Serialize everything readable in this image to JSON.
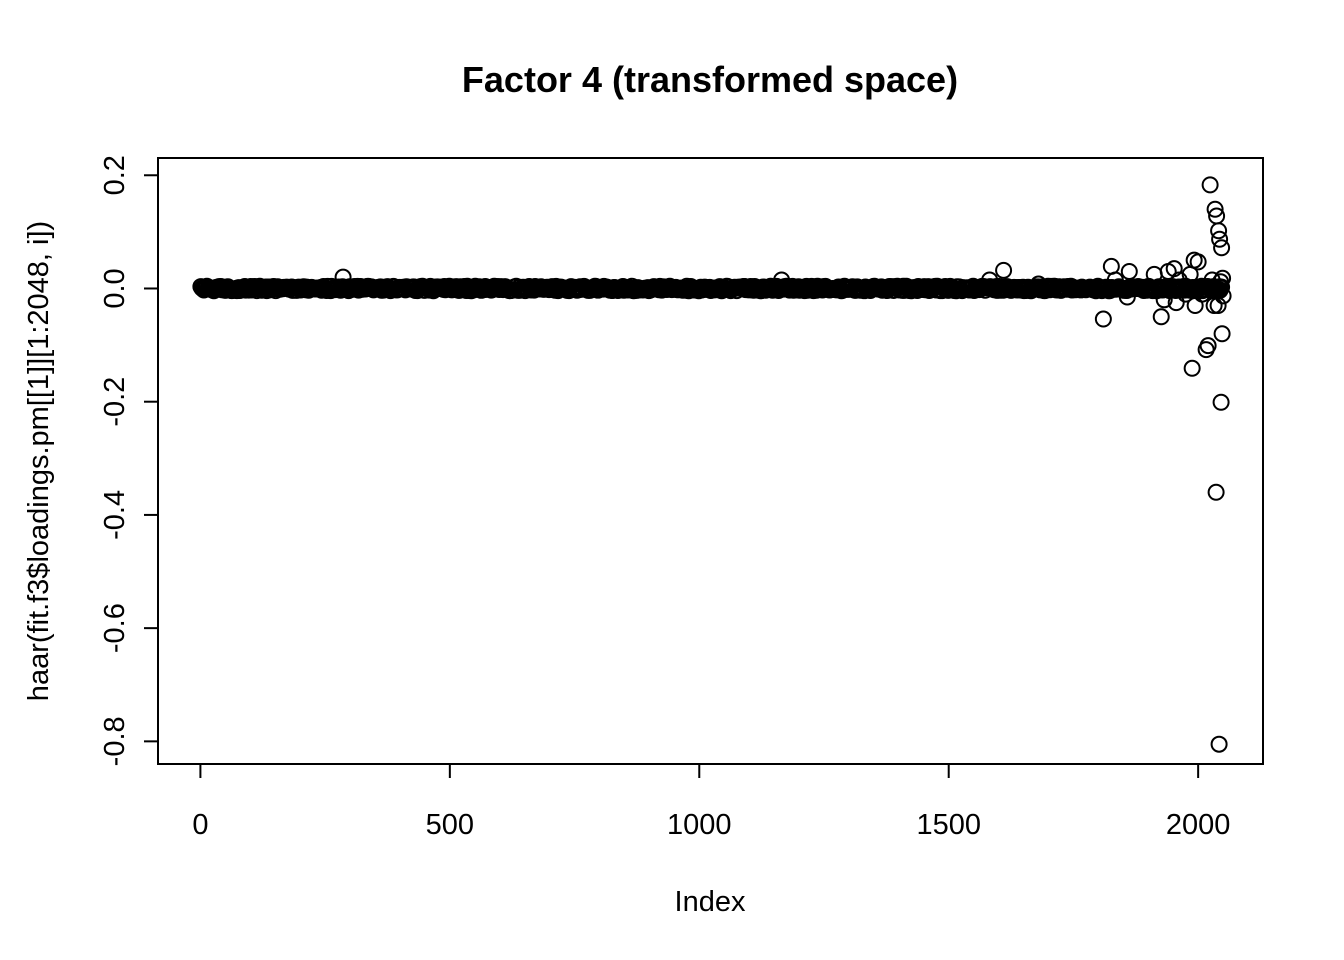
{
  "chart_data": {
    "type": "scatter",
    "title": "Factor 4 (transformed space)",
    "xlabel": "Index",
    "ylabel": "haar(fit.f3$loadings.pm[[1]][1:2048, i])",
    "xlim": [
      -85,
      2130
    ],
    "ylim": [
      -0.84,
      0.2305
    ],
    "xticks": [
      {
        "value": 0,
        "label": "0"
      },
      {
        "value": 500,
        "label": "500"
      },
      {
        "value": 1000,
        "label": "1000"
      },
      {
        "value": 1500,
        "label": "1500"
      },
      {
        "value": 2000,
        "label": "2000"
      }
    ],
    "yticks": [
      {
        "value": 0.2,
        "label": "0.2"
      },
      {
        "value": 0.0,
        "label": "0.0"
      },
      {
        "value": -0.2,
        "label": "-0.2"
      },
      {
        "value": -0.4,
        "label": "-0.4"
      },
      {
        "value": -0.6,
        "label": "-0.6"
      },
      {
        "value": -0.8,
        "label": "-0.8"
      }
    ],
    "dense_band": {
      "x_range": [
        1,
        2048
      ],
      "step": 2,
      "y_center": 0.0,
      "y_spread": 0.004
    },
    "points": [
      {
        "x": 286,
        "y": 0.02
      },
      {
        "x": 1165,
        "y": 0.015
      },
      {
        "x": 1582,
        "y": 0.015
      },
      {
        "x": 1610,
        "y": 0.032
      },
      {
        "x": 1680,
        "y": 0.008
      },
      {
        "x": 1810,
        "y": -0.054
      },
      {
        "x": 1826,
        "y": 0.039
      },
      {
        "x": 1834,
        "y": 0.015
      },
      {
        "x": 1862,
        "y": 0.03
      },
      {
        "x": 1858,
        "y": -0.015
      },
      {
        "x": 1912,
        "y": 0.025
      },
      {
        "x": 1926,
        "y": -0.05
      },
      {
        "x": 1932,
        "y": -0.02
      },
      {
        "x": 1940,
        "y": 0.03
      },
      {
        "x": 1952,
        "y": 0.035
      },
      {
        "x": 1956,
        "y": -0.025
      },
      {
        "x": 1962,
        "y": 0.015
      },
      {
        "x": 1975,
        "y": -0.01
      },
      {
        "x": 1984,
        "y": 0.025
      },
      {
        "x": 1988,
        "y": -0.141
      },
      {
        "x": 1992,
        "y": 0.05
      },
      {
        "x": 1994,
        "y": -0.03
      },
      {
        "x": 2000,
        "y": 0.047
      },
      {
        "x": 2008,
        "y": -0.01
      },
      {
        "x": 2016,
        "y": -0.108
      },
      {
        "x": 2020,
        "y": -0.101
      },
      {
        "x": 2024,
        "y": 0.183
      },
      {
        "x": 2028,
        "y": 0.015
      },
      {
        "x": 2032,
        "y": -0.03
      },
      {
        "x": 2034,
        "y": 0.14
      },
      {
        "x": 2036,
        "y": -0.36
      },
      {
        "x": 2037,
        "y": 0.128
      },
      {
        "x": 2040,
        "y": -0.03
      },
      {
        "x": 2041,
        "y": 0.102
      },
      {
        "x": 2042,
        "y": -0.805
      },
      {
        "x": 2043,
        "y": 0.087
      },
      {
        "x": 2044,
        "y": -0.003
      },
      {
        "x": 2045,
        "y": 0.012
      },
      {
        "x": 2046,
        "y": -0.201
      },
      {
        "x": 2047,
        "y": 0.072
      },
      {
        "x": 2048,
        "y": -0.08
      },
      {
        "x": 2049,
        "y": 0.018
      },
      {
        "x": 2050,
        "y": -0.013
      }
    ]
  }
}
